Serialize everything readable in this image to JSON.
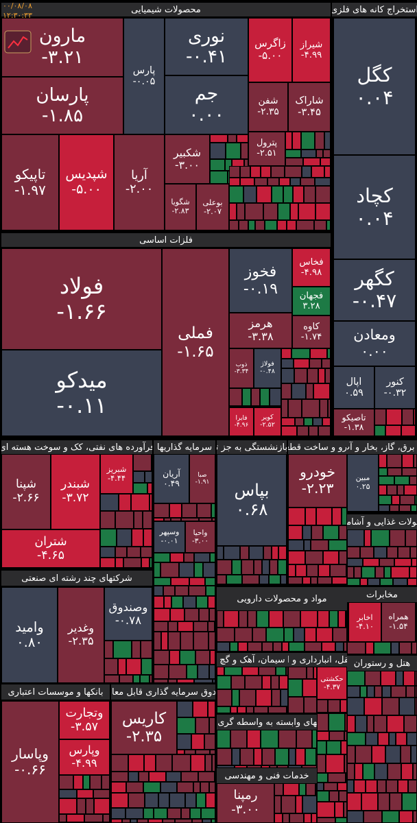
{
  "timestamp": {
    "date": "۰۰/۰۸/۰۸",
    "time": "۱۲:۳۰:۳۳"
  },
  "palette": {
    "gray": "#3b4253",
    "darkred": "#7b2b3c",
    "red": "#c61f3b",
    "green": "#1d7a45"
  },
  "sectors": [
    {
      "name": "محصولات شیمیایی",
      "tiles": [
        {
          "symbol": "مارون",
          "change": "-۳.۲۱",
          "color": "darkred"
        },
        {
          "symbol": "پارسان",
          "change": "-۱.۸۵",
          "color": "darkred"
        },
        {
          "symbol": "تاپیکو",
          "change": "-۱.۹۷",
          "color": "darkred"
        },
        {
          "symbol": "شپدیس",
          "change": "-۵.۰۰",
          "color": "red"
        },
        {
          "symbol": "آریا",
          "change": "-۲.۰۰",
          "color": "darkred"
        },
        {
          "symbol": "پارس",
          "change": "-۰.۰۵",
          "color": "gray"
        },
        {
          "symbol": "نوری",
          "change": "-۰.۴۱",
          "color": "gray"
        },
        {
          "symbol": "جم",
          "change": "۰.۰۰",
          "color": "gray"
        },
        {
          "symbol": "زاگرس",
          "change": "-۵.۰۰",
          "color": "red"
        },
        {
          "symbol": "شیراز",
          "change": "-۴.۹۹",
          "color": "red"
        },
        {
          "symbol": "شفن",
          "change": "-۲.۳۵",
          "color": "darkred"
        },
        {
          "symbol": "شاراک",
          "change": "-۳.۴۵",
          "color": "darkred"
        },
        {
          "symbol": "شکبیر",
          "change": "-۳.۰۰",
          "color": "darkred"
        },
        {
          "symbol": "شگویا",
          "change": "-۲.۸۳",
          "color": "darkred"
        },
        {
          "symbol": "بوعلی",
          "change": "-۲.۰۷",
          "color": "darkred"
        },
        {
          "symbol": "پترول",
          "change": "-۲.۵۱",
          "color": "darkred"
        }
      ]
    },
    {
      "name": "استخراج کانه های فلزی",
      "tiles": [
        {
          "symbol": "کگل",
          "change": "۰.۰۴",
          "color": "gray"
        },
        {
          "symbol": "کچاد",
          "change": "۰.۰۴",
          "color": "gray"
        },
        {
          "symbol": "کگهر",
          "change": "-۰.۴۷",
          "color": "gray"
        },
        {
          "symbol": "ومعادن",
          "change": "۰.۰۰",
          "color": "gray"
        },
        {
          "symbol": "اپال",
          "change": "۰.۵۹",
          "color": "gray"
        },
        {
          "symbol": "کنور",
          "change": "-۰.۳۲",
          "color": "gray"
        },
        {
          "symbol": "تاصیکو",
          "change": "-۱.۳۸",
          "color": "darkred"
        }
      ]
    },
    {
      "name": "فلزات اساسی",
      "tiles": [
        {
          "symbol": "فولاد",
          "change": "-۱.۶۶",
          "color": "darkred"
        },
        {
          "symbol": "میدکو",
          "change": "-۰.۱۱",
          "color": "gray"
        },
        {
          "symbol": "فملی",
          "change": "-۱.۶۵",
          "color": "darkred"
        },
        {
          "symbol": "فخوز",
          "change": "-۰.۱۹",
          "color": "gray"
        },
        {
          "symbol": "فخاس",
          "change": "-۴.۹۸",
          "color": "red"
        },
        {
          "symbol": "فجهان",
          "change": "۳.۲۸",
          "color": "green"
        },
        {
          "symbol": "هرمز",
          "change": "-۳.۳۸",
          "color": "darkred"
        },
        {
          "symbol": "کاوه",
          "change": "-۱.۷۴",
          "color": "darkred"
        },
        {
          "symbol": "ذوب",
          "change": "-۳.۳۴",
          "color": "darkred"
        },
        {
          "symbol": "فولاژ",
          "change": "-۰.۴۸",
          "color": "gray"
        },
        {
          "symbol": "فایرا",
          "change": "-۴.۹۶",
          "color": "red"
        },
        {
          "symbol": "کویر",
          "change": "-۲.۵۲",
          "color": "red"
        }
      ]
    },
    {
      "name": "فرآورده های نفتی، کک و سوخت هسته ای",
      "tiles": [
        {
          "symbol": "شپنا",
          "change": "-۲.۶۶",
          "color": "darkred"
        },
        {
          "symbol": "شبندر",
          "change": "-۳.۷۲",
          "color": "red"
        },
        {
          "symbol": "شبریز",
          "change": "-۴.۴۴",
          "color": "red"
        },
        {
          "symbol": "شتران",
          "change": "-۴.۶۵",
          "color": "red"
        }
      ]
    },
    {
      "name": "شرکتهای چند رشته ای صنعتی",
      "tiles": [
        {
          "symbol": "وامید",
          "change": "۰.۸۰",
          "color": "gray"
        },
        {
          "symbol": "وغدیر",
          "change": "-۲.۳۵",
          "color": "darkred"
        },
        {
          "symbol": "وصندوق",
          "change": "-۰.۷۸",
          "color": "gray"
        }
      ]
    },
    {
      "name": "بانکها و موسسات اعتباری",
      "tiles": [
        {
          "symbol": "وپاسار",
          "change": "-۰.۶۶",
          "color": "darkred"
        },
        {
          "symbol": "وتجارت",
          "change": "-۳.۵۷",
          "color": "red"
        },
        {
          "symbol": "وپارس",
          "change": "-۴.۹۹",
          "color": "red"
        }
      ]
    },
    {
      "name": "صندوق سرمایه گذاری قابل معامله",
      "tiles": [
        {
          "symbol": "کاریس",
          "change": "-۲.۳۵",
          "color": "darkred"
        }
      ]
    },
    {
      "name": "سرمایه گذاریها",
      "tiles": [
        {
          "symbol": "آریان",
          "change": "۰.۴۹",
          "color": "gray"
        },
        {
          "symbol": "صبا",
          "change": "-۱.۹۱",
          "color": "darkred"
        },
        {
          "symbol": "وسپهر",
          "change": "-۰.۰۱",
          "color": "gray"
        },
        {
          "symbol": "واحیا",
          "change": "-۳.۰۰",
          "color": "darkred"
        }
      ]
    },
    {
      "name": "بیمه وصندوق بازنشستگی به جز تامین اجتماعی",
      "tiles": [
        {
          "symbol": "بپاس",
          "change": "۰.۶۸",
          "color": "gray"
        }
      ]
    },
    {
      "name": "خودرو و ساخت قطعات",
      "tiles": [
        {
          "symbol": "خودرو",
          "change": "-۲.۲۳",
          "color": "darkred"
        }
      ]
    },
    {
      "name": "عرضه برق، گاز، بخار و آب گرم",
      "tiles": [
        {
          "symbol": "مبین",
          "change": "۰.۲۵",
          "color": "gray"
        }
      ]
    },
    {
      "name": "محصولات غذایی و آشامیدنی",
      "tiles": []
    },
    {
      "name": "مواد و محصولات دارویی",
      "tiles": []
    },
    {
      "name": "مخابرات",
      "tiles": [
        {
          "symbol": "اخابر",
          "change": "-۴.۱۰",
          "color": "red"
        },
        {
          "symbol": "همراه",
          "change": "-۱.۵۴",
          "color": "darkred"
        }
      ]
    },
    {
      "name": "سیمان، آهک و گچ",
      "tiles": []
    },
    {
      "name": "حمل و نقل، انبارداری و ارتباطات",
      "tiles": [
        {
          "symbol": "حکشتی",
          "change": "-۴.۳۷",
          "color": "red"
        }
      ]
    },
    {
      "name": "هتل و رستوران",
      "tiles": []
    },
    {
      "name": "فعالیتهای وابسته به واسطه گری مالی",
      "tiles": []
    },
    {
      "name": "خدمات فنی و مهندسی",
      "tiles": [
        {
          "symbol": "رمپنا",
          "change": "-۳.۰۰",
          "color": "darkred"
        }
      ]
    }
  ]
}
